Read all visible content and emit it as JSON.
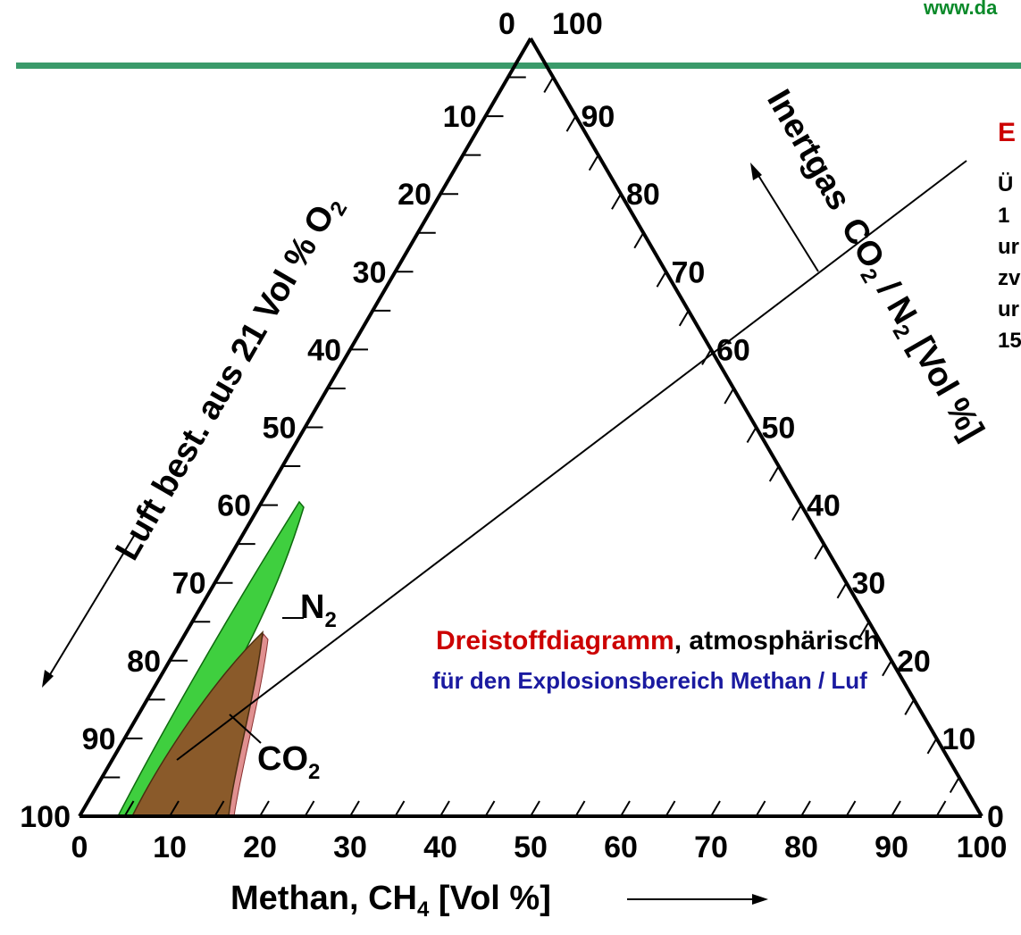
{
  "header": {
    "url_text": "www.da",
    "rule_color": "#3a9a6a"
  },
  "triangle": {
    "apex_label_left": "0",
    "apex_label_right": "100",
    "left_ticks": [
      "10",
      "20",
      "30",
      "40",
      "50",
      "60",
      "70",
      "80",
      "90",
      "100"
    ],
    "right_ticks": [
      "90",
      "80",
      "70",
      "60",
      "50",
      "40",
      "30",
      "20",
      "10",
      "0"
    ],
    "bottom_ticks": [
      "0",
      "10",
      "20",
      "30",
      "40",
      "50",
      "60",
      "70",
      "80",
      "90",
      "100"
    ]
  },
  "axes": {
    "left_title": "Luft  best. aus 21 Vol % O",
    "left_title_sub": "2",
    "right_title_a": "Inertgas",
    "right_title_b": "CO",
    "right_title_b_sub": "2",
    "right_title_c": " / N",
    "right_title_c_sub": "2",
    "right_title_d": " [Vol %]",
    "bottom_title": "Methan, CH",
    "bottom_title_sub": "4",
    "bottom_title_end": " [Vol %]"
  },
  "regions": {
    "n2_label": "N",
    "n2_label_sub": "2",
    "co2_label": "CO",
    "co2_label_sub": "2",
    "n2_color": "#3fcf3f",
    "co2_color": "#8a5a2a",
    "co2_edge_color": "#d98080"
  },
  "caption": {
    "line1_red": "Dreistoffdiagramm",
    "line1_black": ", atmosphärisch",
    "line2": "für den Explosionsbereich Methan / Luf",
    "red_color": "#cc0000",
    "blue_color": "#1a1aa0"
  },
  "sidebar": {
    "heading": "E",
    "heading_color": "#cc0000",
    "lines": [
      "Ü",
      "1",
      "ur",
      "zv",
      "ur",
      "15"
    ]
  }
}
